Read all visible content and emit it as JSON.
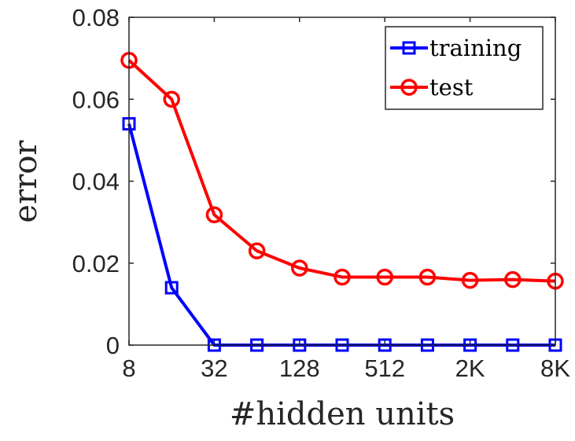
{
  "chart_data": {
    "type": "line",
    "xlabel": "#hidden units",
    "ylabel": "error",
    "xscale": "log2",
    "x": [
      8,
      16,
      32,
      64,
      128,
      256,
      512,
      1024,
      2048,
      4096,
      8192
    ],
    "xticks": [
      8,
      32,
      128,
      512,
      2048,
      8192
    ],
    "xtick_labels": [
      "8",
      "32",
      "128",
      "512",
      "2K",
      "8K"
    ],
    "yticks": [
      0,
      0.02,
      0.04,
      0.06,
      0.08
    ],
    "ytick_labels": [
      "0",
      "0.02",
      "0.04",
      "0.06",
      "0.08"
    ],
    "xlim": [
      8,
      8192
    ],
    "ylim": [
      0,
      0.08
    ],
    "grid": false,
    "legend_position": "top-right",
    "series": [
      {
        "name": "training",
        "color": "#0000ff",
        "marker": "square",
        "values": [
          0.054,
          0.014,
          0,
          0,
          0,
          0,
          0,
          0,
          0,
          0,
          0
        ]
      },
      {
        "name": "test",
        "color": "#ff0000",
        "marker": "circle",
        "values": [
          0.0695,
          0.06,
          0.0318,
          0.023,
          0.0188,
          0.0166,
          0.0166,
          0.0166,
          0.0158,
          0.016,
          0.0156
        ]
      }
    ]
  }
}
